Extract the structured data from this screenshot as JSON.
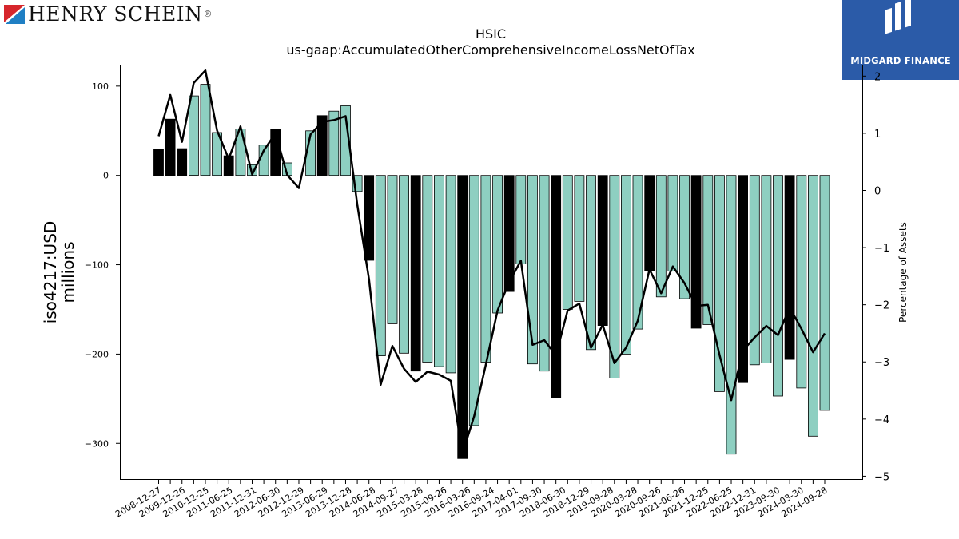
{
  "header": {
    "company_logo": {
      "icon": "henry-schein-flag-icon",
      "text": "Henry Schein",
      "reg_mark": "®"
    },
    "partner_logo": {
      "icon": "midgard-finance-icon",
      "text": "MIDGARD FINANCE",
      "background": "#2b5ba8"
    }
  },
  "chart_data": {
    "type": "bar",
    "title": "HSIC",
    "subtitle": "us-gaap:AccumulatedOtherComprehensiveIncomeLossNetOfTax",
    "ylabel": "iso4217:USD\nmillions",
    "y2label": "Percentage of Assets",
    "ylim": [
      -340,
      124
    ],
    "y2lim": [
      -5.05,
      2.2
    ],
    "yticks": [
      -300,
      -200,
      -100,
      0,
      100
    ],
    "y2ticks": [
      -5,
      -4,
      -3,
      -2,
      -1,
      0,
      1,
      2
    ],
    "colors": {
      "bar": "#8ecfc1",
      "bar_q4": "#000000",
      "line": "#000000"
    },
    "x_tick_labels": [
      "2008-12-27",
      "2009-12-26",
      "2010-12-25",
      "2011-06-25",
      "2011-12-31",
      "2012-06-30",
      "2012-12-29",
      "2013-06-29",
      "2013-12-28",
      "2014-06-28",
      "2014-09-27",
      "2015-03-28",
      "2015-09-26",
      "2016-03-26",
      "2016-09-24",
      "2017-04-01",
      "2017-09-30",
      "2018-06-30",
      "2018-12-29",
      "2019-09-28",
      "2020-03-28",
      "2020-09-26",
      "2021-06-26",
      "2021-12-25",
      "2022-06-25",
      "2022-12-31",
      "2023-09-30",
      "2024-03-30",
      "2024-09-28"
    ],
    "series": [
      {
        "kind": "bar",
        "values": [
          29,
          63,
          30,
          89,
          102,
          48,
          22,
          52,
          12,
          34,
          52,
          14,
          0,
          50,
          67,
          72,
          78,
          -18,
          -95,
          -202,
          -166,
          -199,
          -219,
          -209,
          -214,
          -221,
          -317,
          -280,
          -209,
          -154,
          -130,
          -99,
          -211,
          -219,
          -249,
          -150,
          -141,
          -195,
          -168,
          -227,
          -200,
          -172,
          -107,
          -136,
          -107,
          -138,
          -171,
          -167,
          -242,
          -312,
          -232,
          -212,
          -210,
          -247,
          -206,
          -238,
          -292,
          -263
        ],
        "q4": [
          true,
          true,
          true,
          false,
          false,
          false,
          true,
          false,
          false,
          false,
          true,
          false,
          false,
          false,
          true,
          false,
          false,
          false,
          true,
          false,
          false,
          false,
          true,
          false,
          false,
          false,
          true,
          false,
          false,
          false,
          true,
          false,
          false,
          false,
          true,
          false,
          false,
          false,
          true,
          false,
          false,
          false,
          true,
          false,
          false,
          false,
          true,
          false,
          false,
          false,
          true,
          false,
          false,
          false,
          true,
          false,
          false,
          false
        ]
      },
      {
        "kind": "line",
        "axis": "y2",
        "values": [
          0.95,
          1.67,
          0.85,
          1.88,
          2.1,
          1.05,
          0.55,
          1.12,
          0.28,
          0.7,
          1.0,
          0.27,
          0.04,
          0.98,
          1.2,
          1.23,
          1.3,
          -0.25,
          -1.55,
          -3.4,
          -2.72,
          -3.12,
          -3.35,
          -3.17,
          -3.22,
          -3.33,
          -4.6,
          -3.95,
          -3.05,
          -2.1,
          -1.6,
          -1.23,
          -2.7,
          -2.62,
          -2.88,
          -2.1,
          -1.98,
          -2.75,
          -2.35,
          -3.02,
          -2.75,
          -2.28,
          -1.38,
          -1.8,
          -1.33,
          -1.62,
          -2.02,
          -2.0,
          -2.88,
          -3.67,
          -2.8,
          -2.57,
          -2.37,
          -2.53,
          -2.05,
          -2.42,
          -2.83,
          -2.5
        ]
      }
    ]
  }
}
